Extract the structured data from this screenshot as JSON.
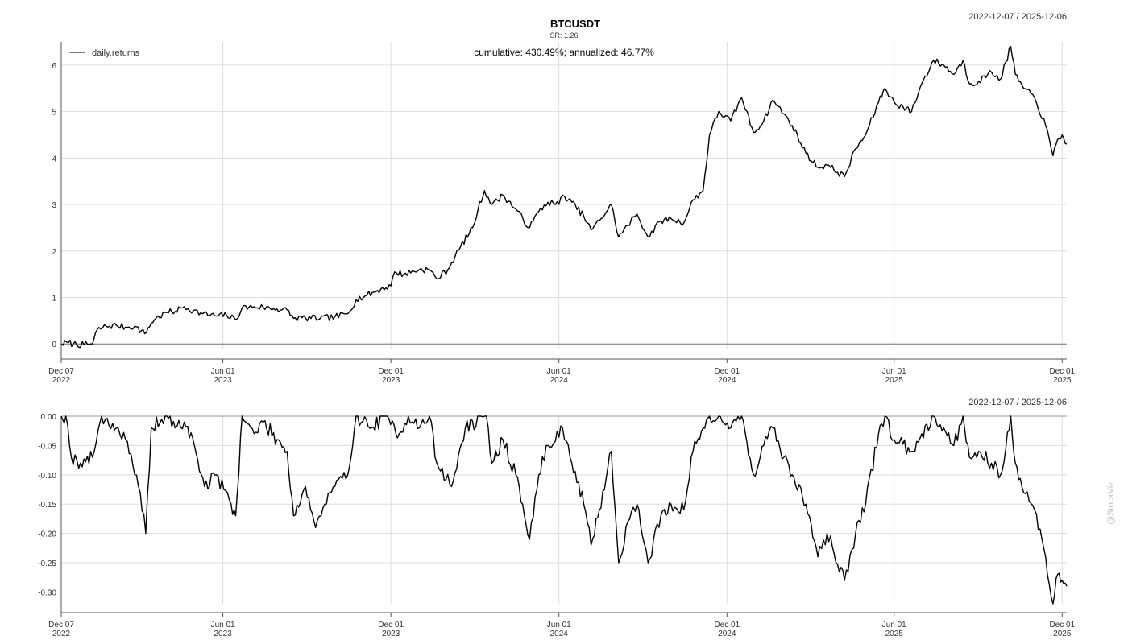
{
  "chart_data": [
    {
      "type": "line",
      "title": "BTCUSDT",
      "subtitle": "SR: 1.26",
      "annotation": "cumulative: 430.49%; annualized: 46.77%",
      "date_range": "2022-12-07 / 2025-12-06",
      "legend": {
        "entries": [
          "daily.returns"
        ],
        "placement": "top-left"
      },
      "grid": true,
      "xlim": [
        "2022-12-07",
        "2025-12-06"
      ],
      "ylim": [
        -0.1,
        6.5
      ],
      "x_ticks": [
        {
          "date": "2022-12-07",
          "line1": "Dec 07",
          "line2": "2022"
        },
        {
          "date": "2023-06-01",
          "line1": "Jun 01",
          "line2": "2023"
        },
        {
          "date": "2023-12-01",
          "line1": "Dec 01",
          "line2": "2023"
        },
        {
          "date": "2024-06-01",
          "line1": "Jun 01",
          "line2": "2024"
        },
        {
          "date": "2024-12-01",
          "line1": "Dec 01",
          "line2": "2024"
        },
        {
          "date": "2025-06-01",
          "line1": "Jun 01",
          "line2": "2025"
        },
        {
          "date": "2025-12-01",
          "line1": "Dec 01",
          "line2": "2025"
        }
      ],
      "y_ticks": [
        0,
        1,
        2,
        3,
        4,
        5,
        6
      ],
      "series": [
        {
          "name": "daily.returns",
          "color": "#000000",
          "points": [
            [
              "2022-12-07",
              0.0
            ],
            [
              "2022-12-15",
              0.03
            ],
            [
              "2022-12-20",
              0.0
            ],
            [
              "2023-01-01",
              -0.02
            ],
            [
              "2023-01-10",
              0.0
            ],
            [
              "2023-01-15",
              0.3
            ],
            [
              "2023-01-25",
              0.38
            ],
            [
              "2023-02-05",
              0.4
            ],
            [
              "2023-02-15",
              0.36
            ],
            [
              "2023-02-25",
              0.38
            ],
            [
              "2023-03-08",
              0.22
            ],
            [
              "2023-03-15",
              0.45
            ],
            [
              "2023-03-20",
              0.55
            ],
            [
              "2023-04-01",
              0.68
            ],
            [
              "2023-04-10",
              0.7
            ],
            [
              "2023-04-20",
              0.8
            ],
            [
              "2023-04-30",
              0.72
            ],
            [
              "2023-05-10",
              0.65
            ],
            [
              "2023-05-25",
              0.6
            ],
            [
              "2023-06-05",
              0.62
            ],
            [
              "2023-06-15",
              0.52
            ],
            [
              "2023-06-22",
              0.78
            ],
            [
              "2023-07-05",
              0.8
            ],
            [
              "2023-07-15",
              0.79
            ],
            [
              "2023-07-30",
              0.75
            ],
            [
              "2023-08-10",
              0.73
            ],
            [
              "2023-08-17",
              0.55
            ],
            [
              "2023-08-30",
              0.56
            ],
            [
              "2023-09-15",
              0.55
            ],
            [
              "2023-10-01",
              0.58
            ],
            [
              "2023-10-15",
              0.65
            ],
            [
              "2023-10-24",
              0.95
            ],
            [
              "2023-11-05",
              1.05
            ],
            [
              "2023-11-20",
              1.18
            ],
            [
              "2023-12-01",
              1.25
            ],
            [
              "2023-12-05",
              1.55
            ],
            [
              "2023-12-15",
              1.5
            ],
            [
              "2024-01-01",
              1.6
            ],
            [
              "2024-01-12",
              1.6
            ],
            [
              "2024-01-20",
              1.4
            ],
            [
              "2024-02-01",
              1.6
            ],
            [
              "2024-02-15",
              2.1
            ],
            [
              "2024-02-28",
              2.5
            ],
            [
              "2024-03-05",
              2.9
            ],
            [
              "2024-03-12",
              3.3
            ],
            [
              "2024-03-20",
              3.0
            ],
            [
              "2024-04-01",
              3.2
            ],
            [
              "2024-04-15",
              2.9
            ],
            [
              "2024-04-30",
              2.5
            ],
            [
              "2024-05-10",
              2.85
            ],
            [
              "2024-05-20",
              3.05
            ],
            [
              "2024-06-01",
              3.0
            ],
            [
              "2024-06-05",
              3.2
            ],
            [
              "2024-06-15",
              3.05
            ],
            [
              "2024-06-28",
              2.75
            ],
            [
              "2024-07-06",
              2.45
            ],
            [
              "2024-07-15",
              2.65
            ],
            [
              "2024-07-28",
              3.0
            ],
            [
              "2024-08-05",
              2.3
            ],
            [
              "2024-08-15",
              2.55
            ],
            [
              "2024-08-25",
              2.8
            ],
            [
              "2024-09-06",
              2.3
            ],
            [
              "2024-09-20",
              2.65
            ],
            [
              "2024-10-01",
              2.7
            ],
            [
              "2024-10-15",
              2.6
            ],
            [
              "2024-10-25",
              3.1
            ],
            [
              "2024-11-05",
              3.3
            ],
            [
              "2024-11-12",
              4.5
            ],
            [
              "2024-11-22",
              5.0
            ],
            [
              "2024-12-05",
              4.8
            ],
            [
              "2024-12-17",
              5.3
            ],
            [
              "2024-12-30",
              4.55
            ],
            [
              "2025-01-10",
              4.8
            ],
            [
              "2025-01-20",
              5.25
            ],
            [
              "2025-02-01",
              4.95
            ],
            [
              "2025-02-10",
              4.7
            ],
            [
              "2025-02-25",
              4.1
            ],
            [
              "2025-03-10",
              3.8
            ],
            [
              "2025-03-20",
              3.85
            ],
            [
              "2025-04-08",
              3.6
            ],
            [
              "2025-04-20",
              4.2
            ],
            [
              "2025-05-01",
              4.5
            ],
            [
              "2025-05-15",
              5.2
            ],
            [
              "2025-05-22",
              5.5
            ],
            [
              "2025-06-01",
              5.2
            ],
            [
              "2025-06-20",
              5.0
            ],
            [
              "2025-07-01",
              5.6
            ],
            [
              "2025-07-14",
              6.1
            ],
            [
              "2025-07-25",
              6.0
            ],
            [
              "2025-08-05",
              5.8
            ],
            [
              "2025-08-15",
              6.1
            ],
            [
              "2025-08-22",
              5.6
            ],
            [
              "2025-09-01",
              5.65
            ],
            [
              "2025-09-15",
              5.85
            ],
            [
              "2025-09-25",
              5.7
            ],
            [
              "2025-10-06",
              6.4
            ],
            [
              "2025-10-11",
              5.8
            ],
            [
              "2025-10-20",
              5.5
            ],
            [
              "2025-11-01",
              5.3
            ],
            [
              "2025-11-13",
              4.7
            ],
            [
              "2025-11-21",
              4.05
            ],
            [
              "2025-11-26",
              4.4
            ],
            [
              "2025-12-01",
              4.5
            ],
            [
              "2025-12-06",
              4.3
            ]
          ]
        }
      ]
    },
    {
      "type": "line",
      "title": "",
      "date_range": "2022-12-07 / 2025-12-06",
      "grid": true,
      "xlim": [
        "2022-12-07",
        "2025-12-06"
      ],
      "ylim": [
        -0.32,
        0.0
      ],
      "x_ticks": [
        {
          "date": "2022-12-07",
          "line1": "Dec 07",
          "line2": "2022"
        },
        {
          "date": "2023-06-01",
          "line1": "Jun 01",
          "line2": "2023"
        },
        {
          "date": "2023-12-01",
          "line1": "Dec 01",
          "line2": "2023"
        },
        {
          "date": "2024-06-01",
          "line1": "Jun 01",
          "line2": "2024"
        },
        {
          "date": "2024-12-01",
          "line1": "Dec 01",
          "line2": "2024"
        },
        {
          "date": "2025-06-01",
          "line1": "Jun 01",
          "line2": "2025"
        },
        {
          "date": "2025-12-01",
          "line1": "Dec 01",
          "line2": "2025"
        }
      ],
      "y_ticks": [
        "0.00",
        "-0.05",
        "-0.10",
        "-0.15",
        "-0.20",
        "-0.25",
        "-0.30"
      ],
      "series": [
        {
          "color": "#000000",
          "points": [
            [
              "2022-12-07",
              0.0
            ],
            [
              "2022-12-12",
              0.0
            ],
            [
              "2022-12-18",
              -0.07
            ],
            [
              "2022-12-28",
              -0.08
            ],
            [
              "2023-01-10",
              -0.07
            ],
            [
              "2023-01-20",
              0.0
            ],
            [
              "2023-02-05",
              -0.02
            ],
            [
              "2023-02-15",
              -0.04
            ],
            [
              "2023-02-25",
              -0.1
            ],
            [
              "2023-03-03",
              -0.13
            ],
            [
              "2023-03-09",
              -0.2
            ],
            [
              "2023-03-15",
              -0.02
            ],
            [
              "2023-04-01",
              0.0
            ],
            [
              "2023-04-10",
              -0.02
            ],
            [
              "2023-04-20",
              -0.01
            ],
            [
              "2023-05-01",
              -0.05
            ],
            [
              "2023-05-12",
              -0.12
            ],
            [
              "2023-05-25",
              -0.1
            ],
            [
              "2023-06-10",
              -0.15
            ],
            [
              "2023-06-15",
              -0.17
            ],
            [
              "2023-06-22",
              0.0
            ],
            [
              "2023-07-05",
              -0.03
            ],
            [
              "2023-07-15",
              -0.01
            ],
            [
              "2023-07-30",
              -0.04
            ],
            [
              "2023-08-10",
              -0.06
            ],
            [
              "2023-08-17",
              -0.17
            ],
            [
              "2023-08-30",
              -0.12
            ],
            [
              "2023-09-10",
              -0.19
            ],
            [
              "2023-09-20",
              -0.15
            ],
            [
              "2023-10-01",
              -0.12
            ],
            [
              "2023-10-15",
              -0.1
            ],
            [
              "2023-10-24",
              0.0
            ],
            [
              "2023-11-10",
              -0.02
            ],
            [
              "2023-11-25",
              0.0
            ],
            [
              "2023-12-10",
              -0.03
            ],
            [
              "2023-12-20",
              0.0
            ],
            [
              "2024-01-01",
              -0.02
            ],
            [
              "2024-01-12",
              0.0
            ],
            [
              "2024-01-20",
              -0.08
            ],
            [
              "2024-02-05",
              -0.12
            ],
            [
              "2024-02-20",
              -0.02
            ],
            [
              "2024-03-14",
              0.0
            ],
            [
              "2024-03-20",
              -0.08
            ],
            [
              "2024-04-01",
              -0.04
            ],
            [
              "2024-04-15",
              -0.1
            ],
            [
              "2024-04-30",
              -0.21
            ],
            [
              "2024-05-10",
              -0.1
            ],
            [
              "2024-05-20",
              -0.05
            ],
            [
              "2024-06-05",
              -0.02
            ],
            [
              "2024-06-15",
              -0.08
            ],
            [
              "2024-06-28",
              -0.15
            ],
            [
              "2024-07-06",
              -0.22
            ],
            [
              "2024-07-15",
              -0.16
            ],
            [
              "2024-07-28",
              -0.06
            ],
            [
              "2024-08-05",
              -0.25
            ],
            [
              "2024-08-15",
              -0.18
            ],
            [
              "2024-08-25",
              -0.15
            ],
            [
              "2024-09-06",
              -0.25
            ],
            [
              "2024-09-20",
              -0.17
            ],
            [
              "2024-10-01",
              -0.15
            ],
            [
              "2024-10-15",
              -0.16
            ],
            [
              "2024-10-25",
              -0.06
            ],
            [
              "2024-11-05",
              -0.02
            ],
            [
              "2024-11-12",
              0.0
            ],
            [
              "2024-11-22",
              0.0
            ],
            [
              "2024-12-05",
              -0.02
            ],
            [
              "2024-12-17",
              0.0
            ],
            [
              "2024-12-30",
              -0.1
            ],
            [
              "2025-01-10",
              -0.05
            ],
            [
              "2025-01-20",
              -0.02
            ],
            [
              "2025-02-01",
              -0.07
            ],
            [
              "2025-02-10",
              -0.1
            ],
            [
              "2025-02-25",
              -0.15
            ],
            [
              "2025-03-10",
              -0.24
            ],
            [
              "2025-03-20",
              -0.2
            ],
            [
              "2025-04-08",
              -0.28
            ],
            [
              "2025-04-20",
              -0.2
            ],
            [
              "2025-05-01",
              -0.15
            ],
            [
              "2025-05-15",
              -0.03
            ],
            [
              "2025-05-22",
              0.0
            ],
            [
              "2025-06-01",
              -0.04
            ],
            [
              "2025-06-20",
              -0.06
            ],
            [
              "2025-07-01",
              -0.03
            ],
            [
              "2025-07-14",
              0.0
            ],
            [
              "2025-07-25",
              -0.02
            ],
            [
              "2025-08-05",
              -0.05
            ],
            [
              "2025-08-15",
              0.0
            ],
            [
              "2025-08-22",
              -0.07
            ],
            [
              "2025-09-01",
              -0.06
            ],
            [
              "2025-09-15",
              -0.08
            ],
            [
              "2025-09-25",
              -0.1
            ],
            [
              "2025-10-06",
              0.0
            ],
            [
              "2025-10-11",
              -0.08
            ],
            [
              "2025-10-20",
              -0.13
            ],
            [
              "2025-11-01",
              -0.16
            ],
            [
              "2025-11-13",
              -0.24
            ],
            [
              "2025-11-21",
              -0.32
            ],
            [
              "2025-11-26",
              -0.27
            ],
            [
              "2025-12-01",
              -0.28
            ],
            [
              "2025-12-06",
              -0.29
            ]
          ]
        }
      ]
    }
  ],
  "watermark": "@StockViz"
}
